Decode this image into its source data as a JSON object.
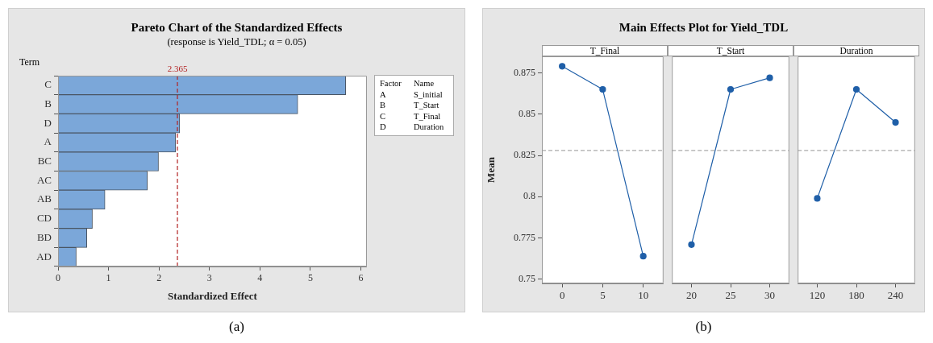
{
  "chart_data": [
    {
      "type": "bar",
      "orientation": "horizontal",
      "title": "Pareto Chart of the Standardized Effects",
      "subtitle": "(response is Yield_TDL; α = 0.05)",
      "xlabel": "Standardized Effect",
      "ylabel": "Term",
      "categories": [
        "C",
        "B",
        "D",
        "A",
        "BC",
        "AC",
        "AB",
        "CD",
        "BD",
        "AD"
      ],
      "values": [
        5.7,
        4.75,
        2.41,
        2.33,
        1.99,
        1.77,
        0.93,
        0.68,
        0.57,
        0.36
      ],
      "color": "#7ba7d9",
      "xlim": [
        0,
        6.12
      ],
      "xticks": [
        0,
        1,
        2,
        3,
        4,
        5,
        6
      ],
      "ref_lines": [
        {
          "axis": "x",
          "value": 2.365,
          "label": "2.365",
          "color": "#b22222",
          "line_style": "dashed"
        }
      ],
      "grid": false,
      "legend": false,
      "annotations": [
        "Factor",
        "Name",
        "A",
        "S_initial",
        "B",
        "T_Start",
        "C",
        "T_Final",
        "D",
        "Duration",
        "(a)"
      ]
    },
    {
      "type": "line",
      "title": "Main Effects Plot for Yield_TDL",
      "subtitle": "T_Final",
      "ylabel": "Mean",
      "categories": [
        "0",
        "5",
        "10"
      ],
      "series": [
        {
          "color": "#1f5fa8",
          "values": [
            0.879,
            0.865,
            0.764
          ]
        }
      ],
      "ylim": [
        0.7475,
        0.885
      ],
      "yticks": [
        0.75,
        0.775,
        0.8,
        0.825,
        0.85,
        0.875
      ],
      "ref_lines": [
        {
          "axis": "y",
          "value": 0.828,
          "color": "#aaaaaa",
          "line_style": "dashed"
        }
      ],
      "marker": "circle",
      "grid": false,
      "legend": false,
      "annotations": [
        "(b)"
      ]
    },
    {
      "type": "line",
      "subtitle": "T_Start",
      "categories": [
        "20",
        "25",
        "30"
      ],
      "series": [
        {
          "color": "#1f5fa8",
          "values": [
            0.771,
            0.865,
            0.872
          ]
        }
      ],
      "ylim": [
        0.7475,
        0.885
      ],
      "yticks": [
        0.75,
        0.775,
        0.8,
        0.825,
        0.85,
        0.875
      ],
      "tick_labels": "x",
      "ref_lines": [
        {
          "axis": "y",
          "value": 0.828,
          "color": "#aaaaaa",
          "line_style": "dashed"
        }
      ],
      "marker": "circle",
      "grid": false,
      "legend": false
    },
    {
      "type": "line",
      "subtitle": "Duration",
      "categories": [
        "120",
        "180",
        "240"
      ],
      "series": [
        {
          "color": "#1f5fa8",
          "values": [
            0.799,
            0.865,
            0.845
          ]
        }
      ],
      "ylim": [
        0.7475,
        0.885
      ],
      "yticks": [
        0.75,
        0.775,
        0.8,
        0.825,
        0.85,
        0.875
      ],
      "tick_labels": "x",
      "ref_lines": [
        {
          "axis": "y",
          "value": 0.828,
          "color": "#aaaaaa",
          "line_style": "dashed"
        }
      ],
      "marker": "circle",
      "grid": false,
      "legend": false
    }
  ]
}
